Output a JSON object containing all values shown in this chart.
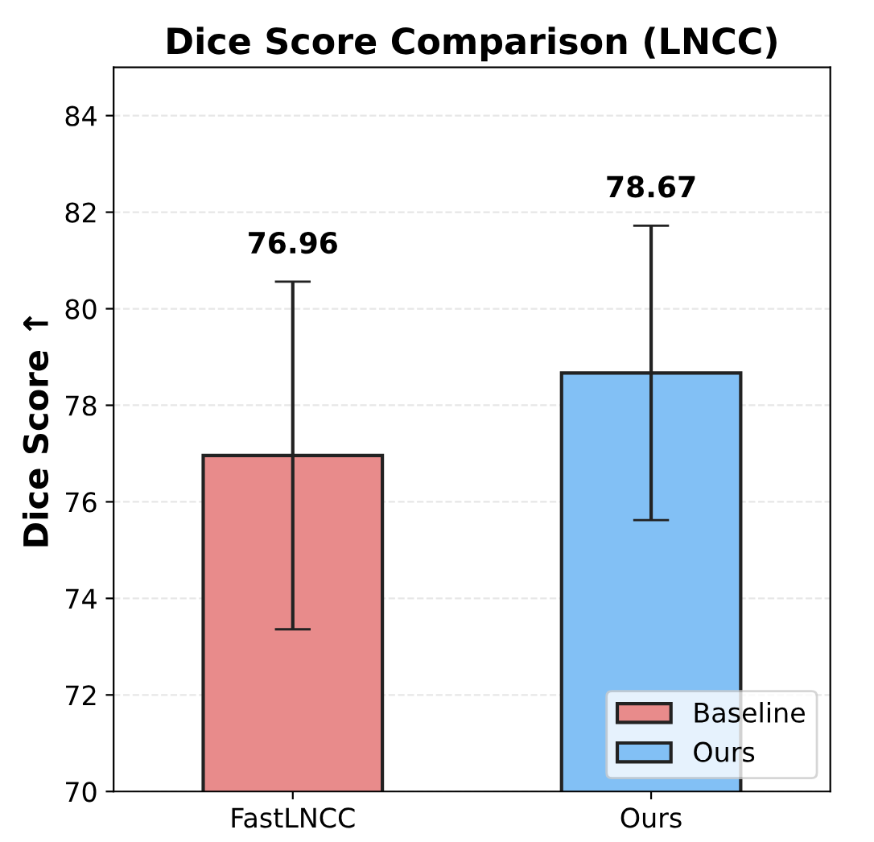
{
  "chart_data": {
    "type": "bar",
    "title": "Dice Score Comparison (LNCC)",
    "ylabel": "Dice Score ↑",
    "categories": [
      "FastLNCC",
      "Ours"
    ],
    "series": [
      {
        "name": "Baseline",
        "color": "#e88b8b",
        "values": [
          76.96,
          null
        ],
        "errors": [
          3.6,
          null
        ]
      },
      {
        "name": "Ours",
        "color": "#82c0f5",
        "values": [
          null,
          78.67
        ],
        "errors": [
          null,
          3.05
        ]
      }
    ],
    "ylim": [
      70,
      85
    ],
    "yticks": [
      70,
      72,
      74,
      76,
      78,
      80,
      82,
      84
    ],
    "grid": "y",
    "legend": "bottom right",
    "annotations": [
      {
        "text": "76.96",
        "x": "FastLNCC",
        "y": 80.56
      },
      {
        "text": "78.67",
        "x": "Ours",
        "y": 81.72
      }
    ]
  }
}
